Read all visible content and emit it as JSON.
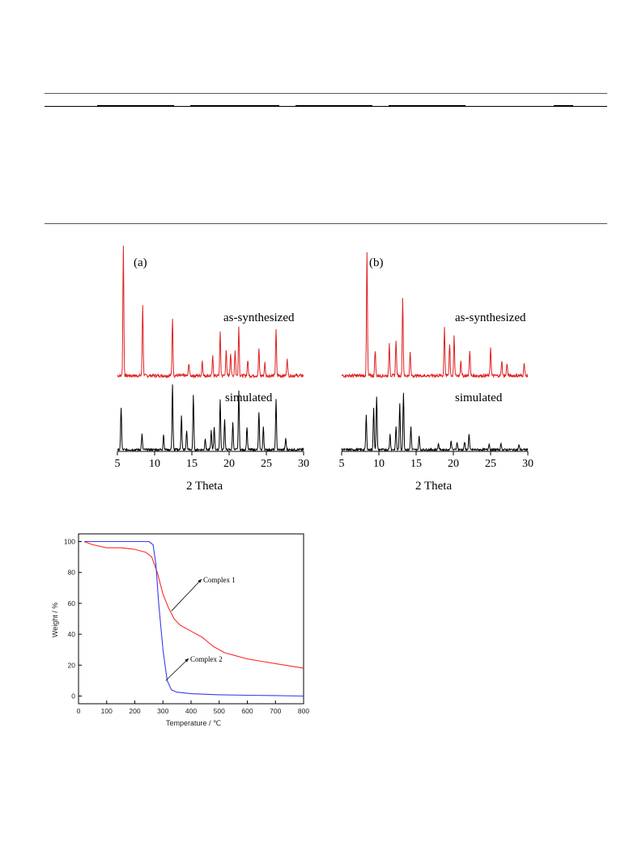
{
  "pxrd_panels": [
    {
      "panel_label": "(a)",
      "top_trace_label": "as-synthesized",
      "bottom_trace_label": "simulated",
      "xlabel": "2 Theta",
      "xticks": [
        "5",
        "10",
        "15",
        "20",
        "25",
        "30"
      ]
    },
    {
      "panel_label": "(b)",
      "top_trace_label": "as-synthesized",
      "bottom_trace_label": "simulated",
      "xlabel": "2 Theta",
      "xticks": [
        "5",
        "10",
        "15",
        "20",
        "25",
        "30"
      ]
    }
  ],
  "tga": {
    "xlabel": "Temperature / ℃",
    "ylabel": "Weight / %",
    "xticks": [
      "0",
      "100",
      "200",
      "300",
      "400",
      "500",
      "600",
      "700",
      "800"
    ],
    "yticks": [
      "0",
      "20",
      "40",
      "60",
      "80",
      "100"
    ],
    "annotations": [
      {
        "text": "Complex 1"
      },
      {
        "text": "Complex 2"
      }
    ]
  },
  "chart_data": [
    {
      "type": "line",
      "title": "(a)",
      "xlabel": "2 Theta",
      "ylabel": "",
      "xlim": [
        5,
        30
      ],
      "series": [
        {
          "name": "as-synthesized",
          "color": "#e02020",
          "peaks": [
            [
              5.8,
              1.0
            ],
            [
              8.4,
              0.55
            ],
            [
              12.4,
              0.45
            ],
            [
              14.6,
              0.1
            ],
            [
              16.4,
              0.12
            ],
            [
              17.8,
              0.15
            ],
            [
              18.8,
              0.33
            ],
            [
              19.6,
              0.2
            ],
            [
              20.2,
              0.18
            ],
            [
              20.8,
              0.2
            ],
            [
              21.3,
              0.38
            ],
            [
              22.5,
              0.12
            ],
            [
              24.0,
              0.2
            ],
            [
              24.8,
              0.1
            ],
            [
              26.3,
              0.35
            ],
            [
              27.8,
              0.14
            ]
          ]
        },
        {
          "name": "simulated",
          "color": "#000000",
          "peaks": [
            [
              5.5,
              0.55
            ],
            [
              8.3,
              0.2
            ],
            [
              11.2,
              0.2
            ],
            [
              12.4,
              0.85
            ],
            [
              13.6,
              0.45
            ],
            [
              14.3,
              0.25
            ],
            [
              15.2,
              0.7
            ],
            [
              16.8,
              0.15
            ],
            [
              17.6,
              0.25
            ],
            [
              18.0,
              0.3
            ],
            [
              18.8,
              0.65
            ],
            [
              19.4,
              0.4
            ],
            [
              20.5,
              0.35
            ],
            [
              21.3,
              0.78
            ],
            [
              22.4,
              0.3
            ],
            [
              24.0,
              0.48
            ],
            [
              24.6,
              0.3
            ],
            [
              26.3,
              0.65
            ],
            [
              27.6,
              0.15
            ]
          ]
        }
      ]
    },
    {
      "type": "line",
      "title": "(b)",
      "xlabel": "2 Theta",
      "ylabel": "",
      "xlim": [
        5,
        30
      ],
      "series": [
        {
          "name": "as-synthesized",
          "color": "#e02020",
          "peaks": [
            [
              8.4,
              0.95
            ],
            [
              9.5,
              0.2
            ],
            [
              11.4,
              0.25
            ],
            [
              12.3,
              0.28
            ],
            [
              13.2,
              0.6
            ],
            [
              14.2,
              0.18
            ],
            [
              18.8,
              0.38
            ],
            [
              19.5,
              0.25
            ],
            [
              20.1,
              0.3
            ],
            [
              21.0,
              0.12
            ],
            [
              22.2,
              0.2
            ],
            [
              25.0,
              0.22
            ],
            [
              26.5,
              0.12
            ],
            [
              27.2,
              0.1
            ],
            [
              29.5,
              0.1
            ]
          ]
        },
        {
          "name": "simulated",
          "color": "#000000",
          "peaks": [
            [
              8.3,
              0.45
            ],
            [
              9.3,
              0.55
            ],
            [
              9.7,
              0.7
            ],
            [
              11.5,
              0.2
            ],
            [
              12.3,
              0.3
            ],
            [
              12.8,
              0.6
            ],
            [
              13.3,
              0.75
            ],
            [
              14.3,
              0.3
            ],
            [
              15.4,
              0.18
            ],
            [
              18.0,
              0.08
            ],
            [
              19.7,
              0.12
            ],
            [
              20.5,
              0.1
            ],
            [
              21.5,
              0.1
            ],
            [
              22.1,
              0.2
            ],
            [
              24.8,
              0.08
            ],
            [
              26.4,
              0.08
            ],
            [
              28.8,
              0.06
            ]
          ]
        }
      ]
    },
    {
      "type": "line",
      "title": "",
      "xlabel": "Temperature / ℃",
      "ylabel": "Weight / %",
      "xlim": [
        0,
        800
      ],
      "ylim": [
        -5,
        105
      ],
      "series": [
        {
          "name": "Complex 1",
          "color": "#ff2a2a",
          "x": [
            20,
            50,
            100,
            150,
            200,
            240,
            260,
            280,
            300,
            320,
            340,
            360,
            400,
            440,
            480,
            520,
            560,
            600,
            650,
            700,
            750,
            800
          ],
          "y": [
            100,
            98,
            96,
            96,
            95,
            93,
            90,
            80,
            66,
            57,
            50,
            46,
            42,
            38,
            32,
            28,
            26,
            24,
            22.5,
            21,
            19.5,
            18
          ]
        },
        {
          "name": "Complex 2",
          "color": "#3a3af0",
          "x": [
            20,
            100,
            200,
            250,
            265,
            275,
            285,
            300,
            315,
            330,
            350,
            400,
            500,
            600,
            700,
            800
          ],
          "y": [
            100,
            100,
            100,
            100,
            98,
            85,
            60,
            30,
            10,
            4,
            2.5,
            1.5,
            0.8,
            0.5,
            0.3,
            0
          ]
        }
      ]
    }
  ]
}
